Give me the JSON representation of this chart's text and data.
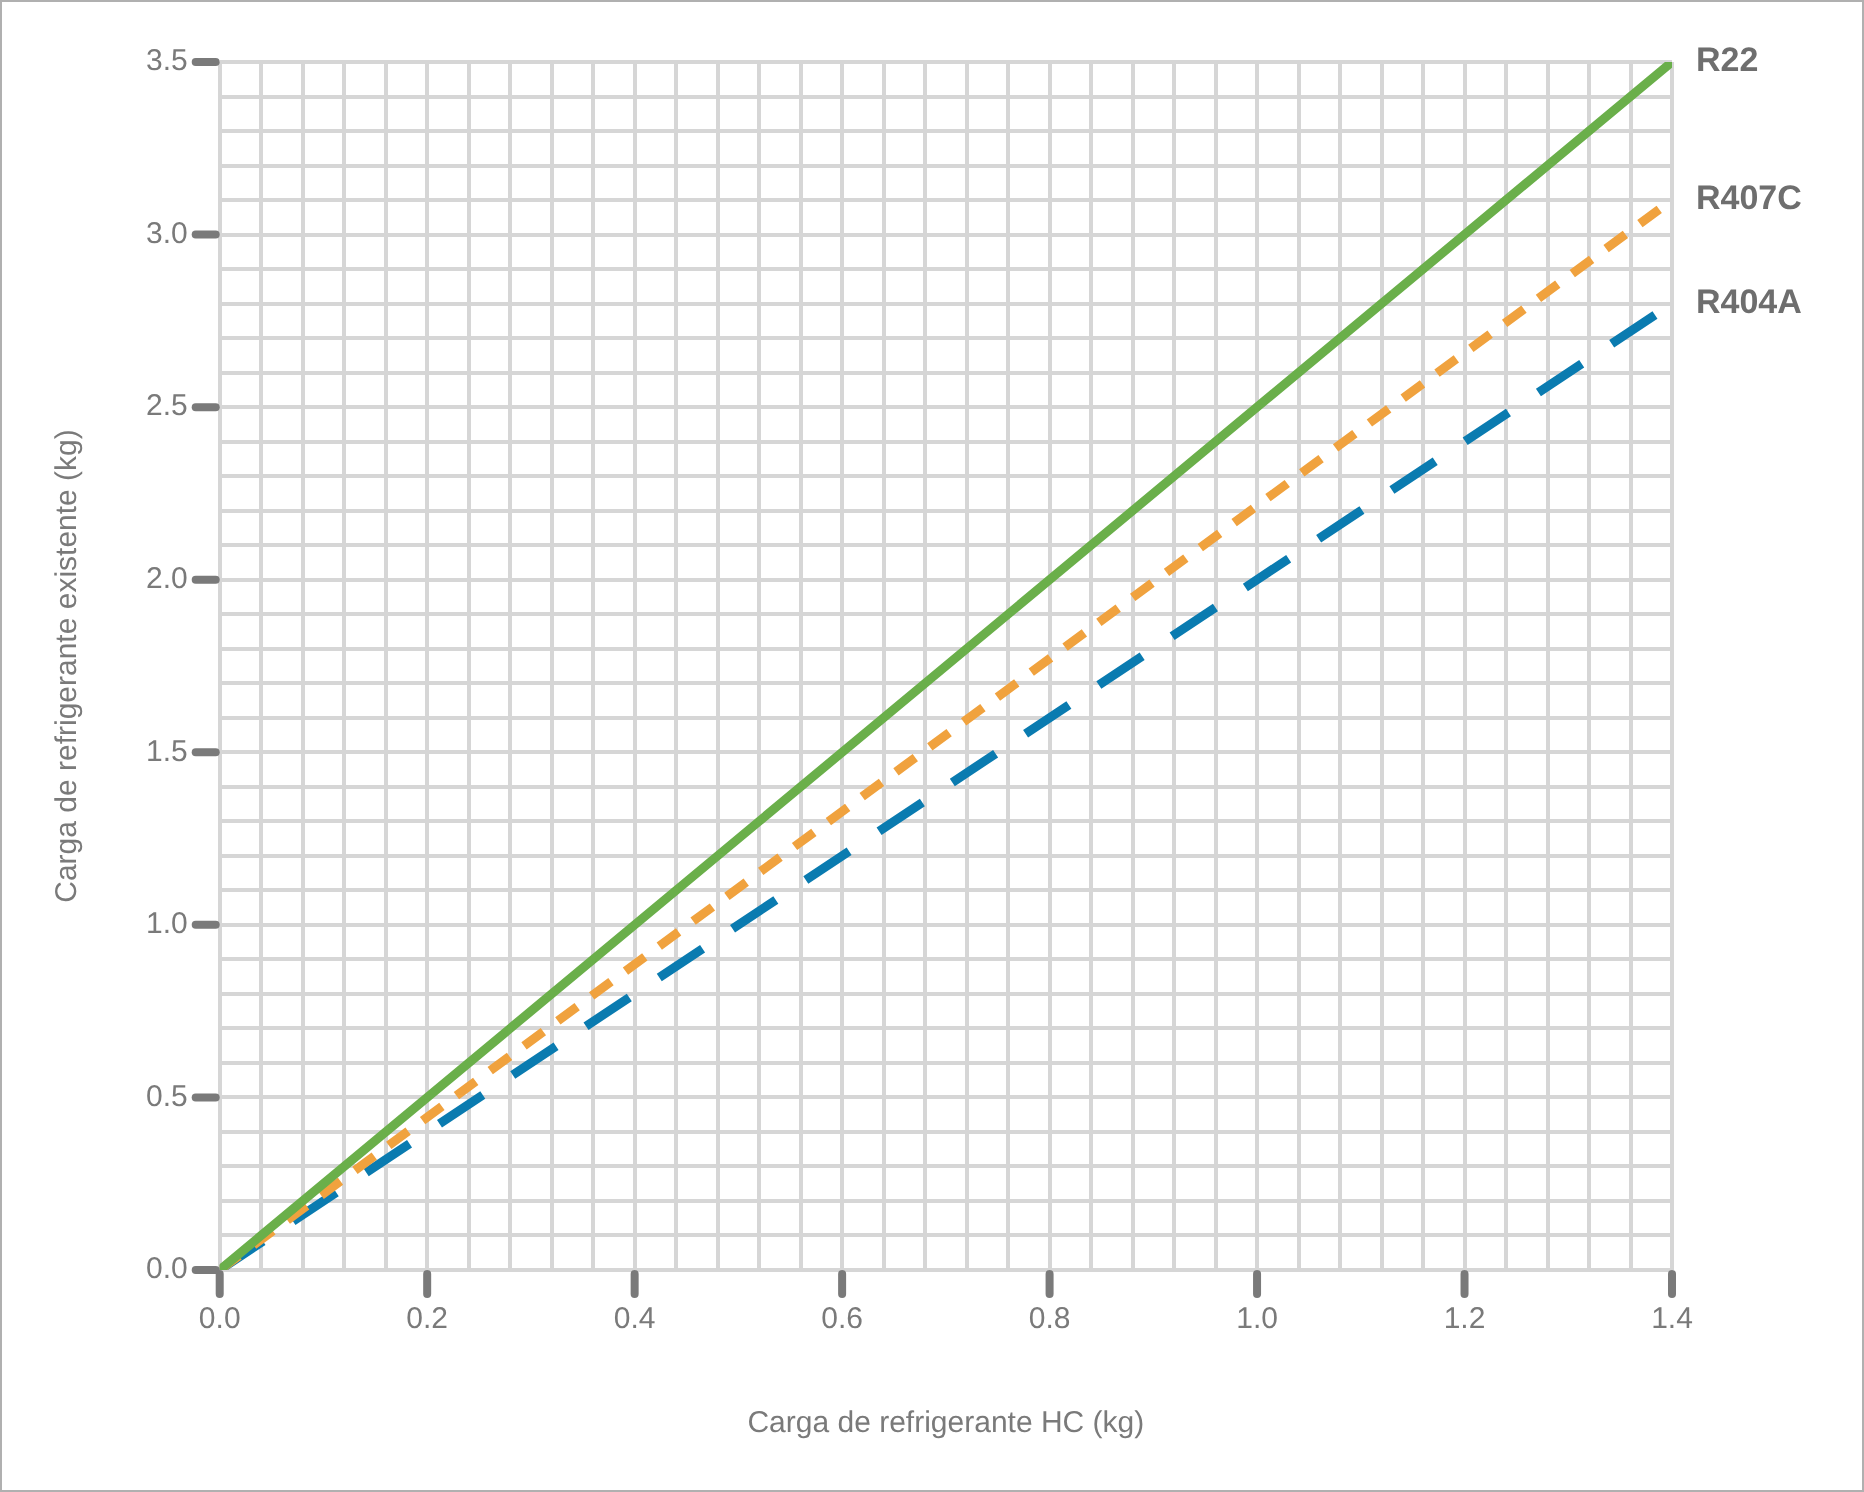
{
  "chart_data": {
    "type": "line",
    "xlabel": "Carga de refrigerante HC (kg)",
    "ylabel": "Carga de refrigerante existente (kg)",
    "x": [
      0,
      1.4
    ],
    "series": [
      {
        "name": "R22",
        "color": "#6aaf4a",
        "values": [
          0,
          3.5
        ],
        "line_style": "solid"
      },
      {
        "name": "R407C",
        "color": "#f0a23e",
        "values": [
          0,
          3.1
        ],
        "line_style": "dashed"
      },
      {
        "name": "R404A",
        "color": "#0a7bb0",
        "values": [
          0,
          2.8
        ],
        "line_style": "dashed"
      }
    ],
    "xlim": [
      0,
      1.4
    ],
    "ylim": [
      0,
      3.5
    ],
    "xticks": [
      {
        "value": 0,
        "label": "0.0"
      },
      {
        "value": 0.04,
        "label": null
      },
      {
        "value": 0.08,
        "label": null
      },
      {
        "value": 0.12,
        "label": null
      },
      {
        "value": 0.16,
        "label": null
      },
      0.2,
      {
        "value": 0.24,
        "label": null
      },
      {
        "value": 0.28,
        "label": null
      },
      {
        "value": 0.32,
        "label": null
      },
      {
        "value": 0.36,
        "label": null
      },
      0.4,
      {
        "value": 0.44,
        "label": null
      },
      {
        "value": 0.48,
        "label": null
      },
      {
        "value": 0.52,
        "label": null
      },
      {
        "value": 0.56,
        "label": null
      },
      0.6,
      {
        "value": 0.64,
        "label": null
      },
      {
        "value": 0.68,
        "label": null
      },
      {
        "value": 0.72,
        "label": null
      },
      {
        "value": 0.76,
        "label": null
      },
      0.8,
      {
        "value": 0.84,
        "label": null
      },
      {
        "value": 0.88,
        "label": null
      },
      {
        "value": 0.92,
        "label": null
      },
      {
        "value": 0.96,
        "label": null
      },
      {
        "value": 1,
        "label": "1.0"
      },
      {
        "value": 1.04,
        "label": null
      },
      {
        "value": 1.08,
        "label": null
      },
      {
        "value": 1.12,
        "label": null
      },
      {
        "value": 1.16,
        "label": null
      },
      1.2,
      {
        "value": 1.24,
        "label": null
      },
      {
        "value": 1.28,
        "label": null
      },
      {
        "value": 1.32,
        "label": null
      },
      {
        "value": 1.36,
        "label": null
      },
      1.4
    ],
    "yticks": [
      {
        "value": 0,
        "label": "0.0"
      },
      {
        "value": 0.1,
        "label": null
      },
      {
        "value": 0.2,
        "label": null
      },
      {
        "value": 0.3,
        "label": null
      },
      {
        "value": 0.4,
        "label": null
      },
      0.5,
      {
        "value": 0.6,
        "label": null
      },
      {
        "value": 0.7,
        "label": null
      },
      {
        "value": 0.8,
        "label": null
      },
      {
        "value": 0.9,
        "label": null
      },
      {
        "value": 1,
        "label": "1.0"
      },
      {
        "value": 1.1,
        "label": null
      },
      {
        "value": 1.2,
        "label": null
      },
      {
        "value": 1.3,
        "label": null
      },
      {
        "value": 1.4,
        "label": null
      },
      1.5,
      {
        "value": 1.6,
        "label": null
      },
      {
        "value": 1.7,
        "label": null
      },
      {
        "value": 1.8,
        "label": null
      },
      {
        "value": 1.9,
        "label": null
      },
      {
        "value": 2,
        "label": "2.0"
      },
      {
        "value": 2.1,
        "label": null
      },
      {
        "value": 2.2,
        "label": null
      },
      {
        "value": 2.3,
        "label": null
      },
      {
        "value": 2.4,
        "label": null
      },
      2.5,
      {
        "value": 2.6,
        "label": null
      },
      {
        "value": 2.7,
        "label": null
      },
      {
        "value": 2.8,
        "label": null
      },
      {
        "value": 2.9,
        "label": null
      },
      {
        "value": 3,
        "label": "3.0"
      },
      {
        "value": 3.1,
        "label": null
      },
      {
        "value": 3.2,
        "label": null
      },
      {
        "value": 3.3,
        "label": null
      },
      {
        "value": 3.4,
        "label": null
      },
      3.5
    ],
    "grid": true,
    "legend": false,
    "marker": "none"
  }
}
